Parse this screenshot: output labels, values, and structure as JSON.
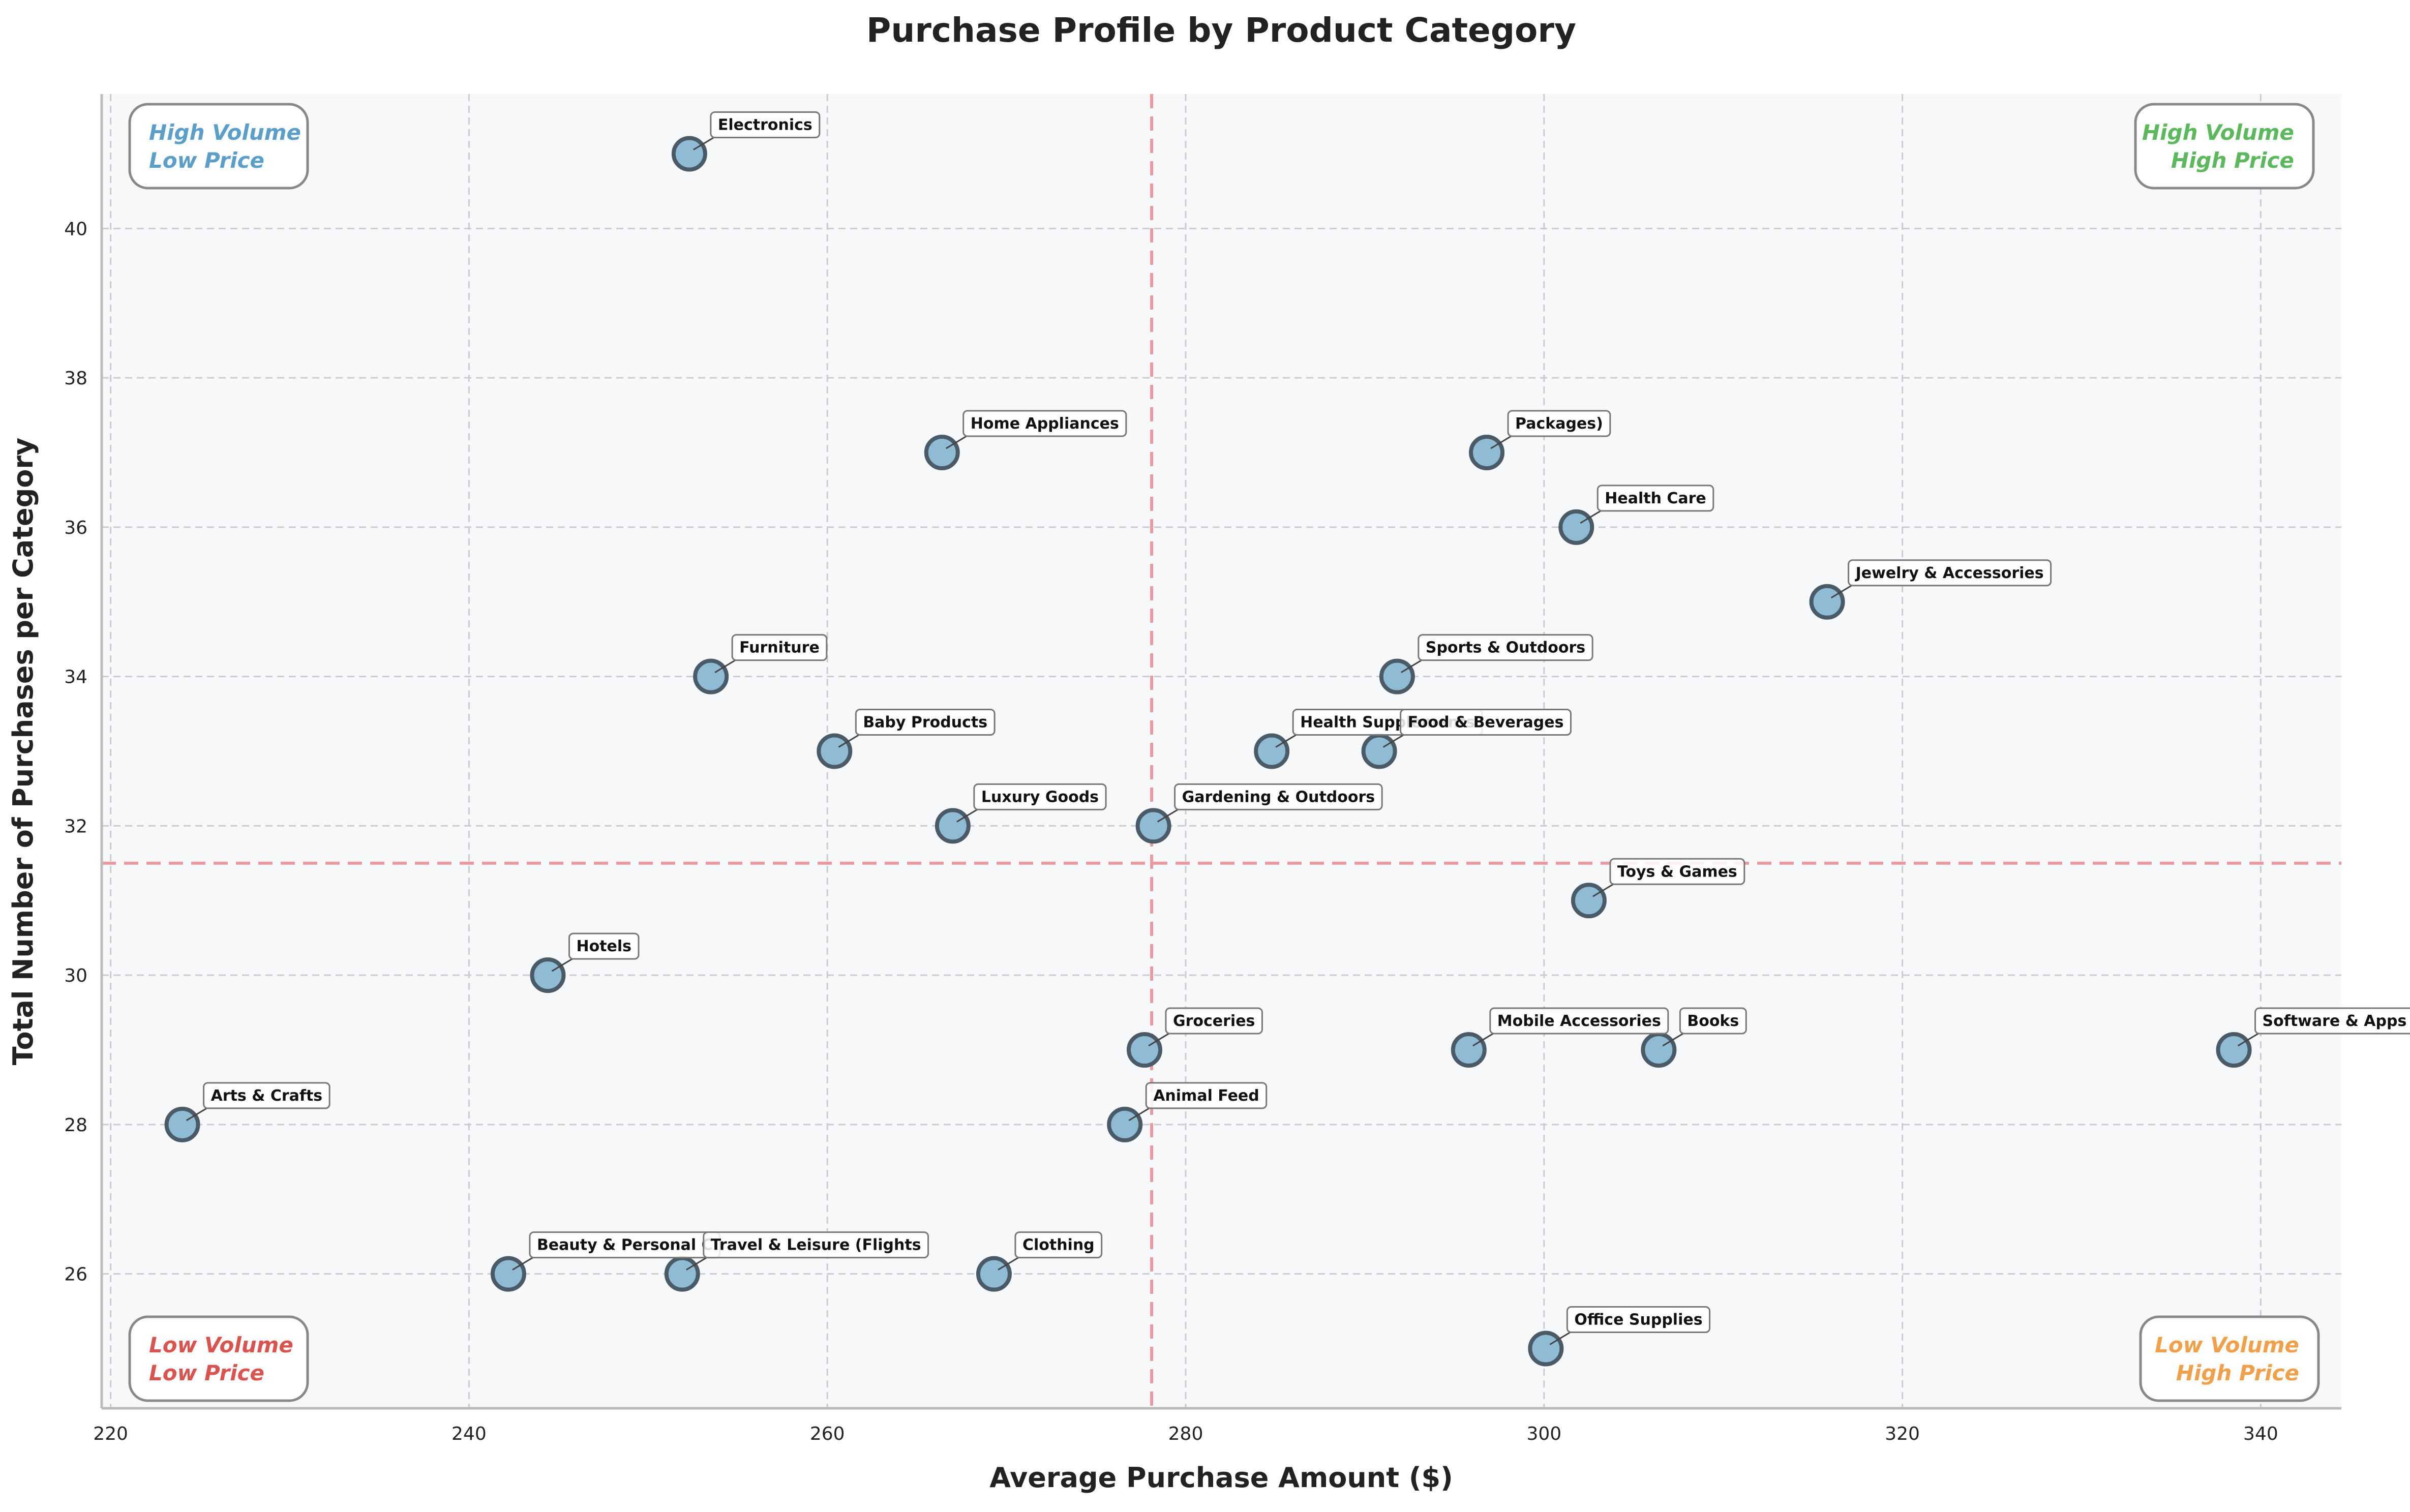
{
  "chart_data": {
    "type": "scatter",
    "title": "Purchase Profile by Product Category",
    "xlabel": "Average Purchase Amount ($)",
    "ylabel": "Total Number of Purchases per Category",
    "xlim": [
      219.5,
      344.5
    ],
    "ylim": [
      24.2,
      41.8
    ],
    "xticks": [
      220,
      240,
      260,
      280,
      300,
      320,
      340
    ],
    "yticks": [
      26,
      28,
      30,
      32,
      34,
      36,
      38,
      40
    ],
    "grid": true,
    "reference_lines": {
      "x": 278.1,
      "y": 31.5
    },
    "marker_color": "#8fbcd4",
    "marker_edge_color": "#4a5a66",
    "reference_line_color": "#e89aa0",
    "points": [
      {
        "label": "Electronics",
        "x": 252.3,
        "y": 41
      },
      {
        "label": "Home Appliances",
        "x": 266.4,
        "y": 37
      },
      {
        "label": "Packages)",
        "x": 296.8,
        "y": 37
      },
      {
        "label": "Health Care",
        "x": 301.8,
        "y": 36
      },
      {
        "label": "Jewelry & Accessories",
        "x": 315.8,
        "y": 35
      },
      {
        "label": "Furniture",
        "x": 253.5,
        "y": 34
      },
      {
        "label": "Sports & Outdoors",
        "x": 291.8,
        "y": 34
      },
      {
        "label": "Baby Products",
        "x": 260.4,
        "y": 33
      },
      {
        "label": "Health Supplements",
        "x": 284.8,
        "y": 33
      },
      {
        "label": "Food & Beverages",
        "x": 290.8,
        "y": 33
      },
      {
        "label": "Luxury Goods",
        "x": 267.0,
        "y": 32
      },
      {
        "label": "Gardening & Outdoors",
        "x": 278.2,
        "y": 32
      },
      {
        "label": "Toys & Games",
        "x": 302.5,
        "y": 31
      },
      {
        "label": "Hotels",
        "x": 244.4,
        "y": 30
      },
      {
        "label": "Groceries",
        "x": 277.7,
        "y": 29
      },
      {
        "label": "Mobile Accessories",
        "x": 295.8,
        "y": 29
      },
      {
        "label": "Books",
        "x": 306.4,
        "y": 29
      },
      {
        "label": "Software & Apps",
        "x": 338.5,
        "y": 29
      },
      {
        "label": "Arts & Crafts",
        "x": 224.0,
        "y": 28
      },
      {
        "label": "Animal Feed",
        "x": 276.6,
        "y": 28
      },
      {
        "label": "Beauty & Personal C",
        "x": 242.2,
        "y": 26
      },
      {
        "label": "Travel & Leisure (Flights",
        "x": 251.9,
        "y": 26
      },
      {
        "label": "Clothing",
        "x": 269.3,
        "y": 26
      },
      {
        "label": "Office Supplies",
        "x": 300.1,
        "y": 25
      }
    ],
    "quadrants": [
      {
        "position": "top-left",
        "line1": "High Volume",
        "line2": "Low Price",
        "color": "#5b9ec9"
      },
      {
        "position": "top-right",
        "line1": "High Volume",
        "line2": "High Price",
        "color": "#5cb85c"
      },
      {
        "position": "bottom-left",
        "line1": "Low Volume",
        "line2": "Low Price",
        "color": "#d9534f"
      },
      {
        "position": "bottom-right",
        "line1": "Low Volume",
        "line2": "High Price",
        "color": "#f0a04b"
      }
    ]
  }
}
